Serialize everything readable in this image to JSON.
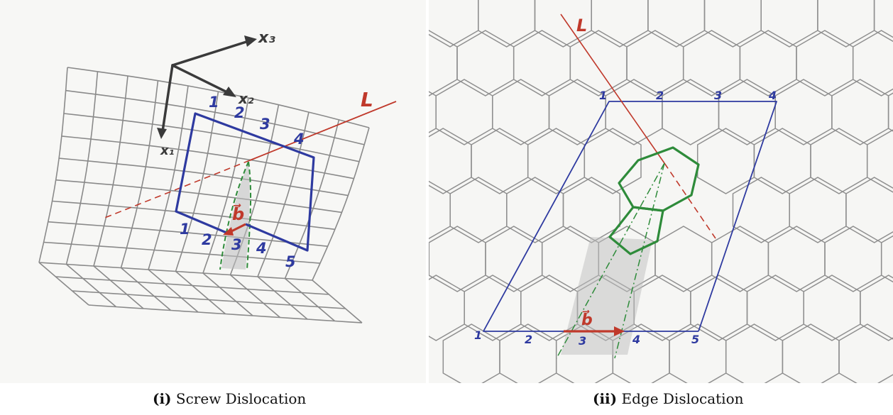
{
  "panels": {
    "screw": {
      "axes": [
        "x₃",
        "x₂",
        "x₁"
      ],
      "line_label": "L",
      "burgers_label": "b⃗",
      "circuit_top": [
        "1",
        "2",
        "3",
        "4"
      ],
      "circuit_bottom": [
        "1",
        "2",
        "3",
        "4",
        "5"
      ],
      "caption_tag": "(i)",
      "caption_text": "Screw Dislocation"
    },
    "edge": {
      "line_label": "L",
      "burgers_label": "b⃗",
      "circuit_top": [
        "1",
        "2",
        "3",
        "4"
      ],
      "circuit_bottom": [
        "1",
        "2",
        "3",
        "4",
        "5"
      ],
      "caption_tag": "(ii)",
      "caption_text": "Edge Dislocation"
    }
  },
  "colors": {
    "grid": "#8a8a8a",
    "circuit": "#2e3aa0",
    "dislocation_line": "#c0392b",
    "burgers_vector": "#c0392b",
    "core": "#2e8b3a",
    "axes": "#3a3a3a"
  }
}
